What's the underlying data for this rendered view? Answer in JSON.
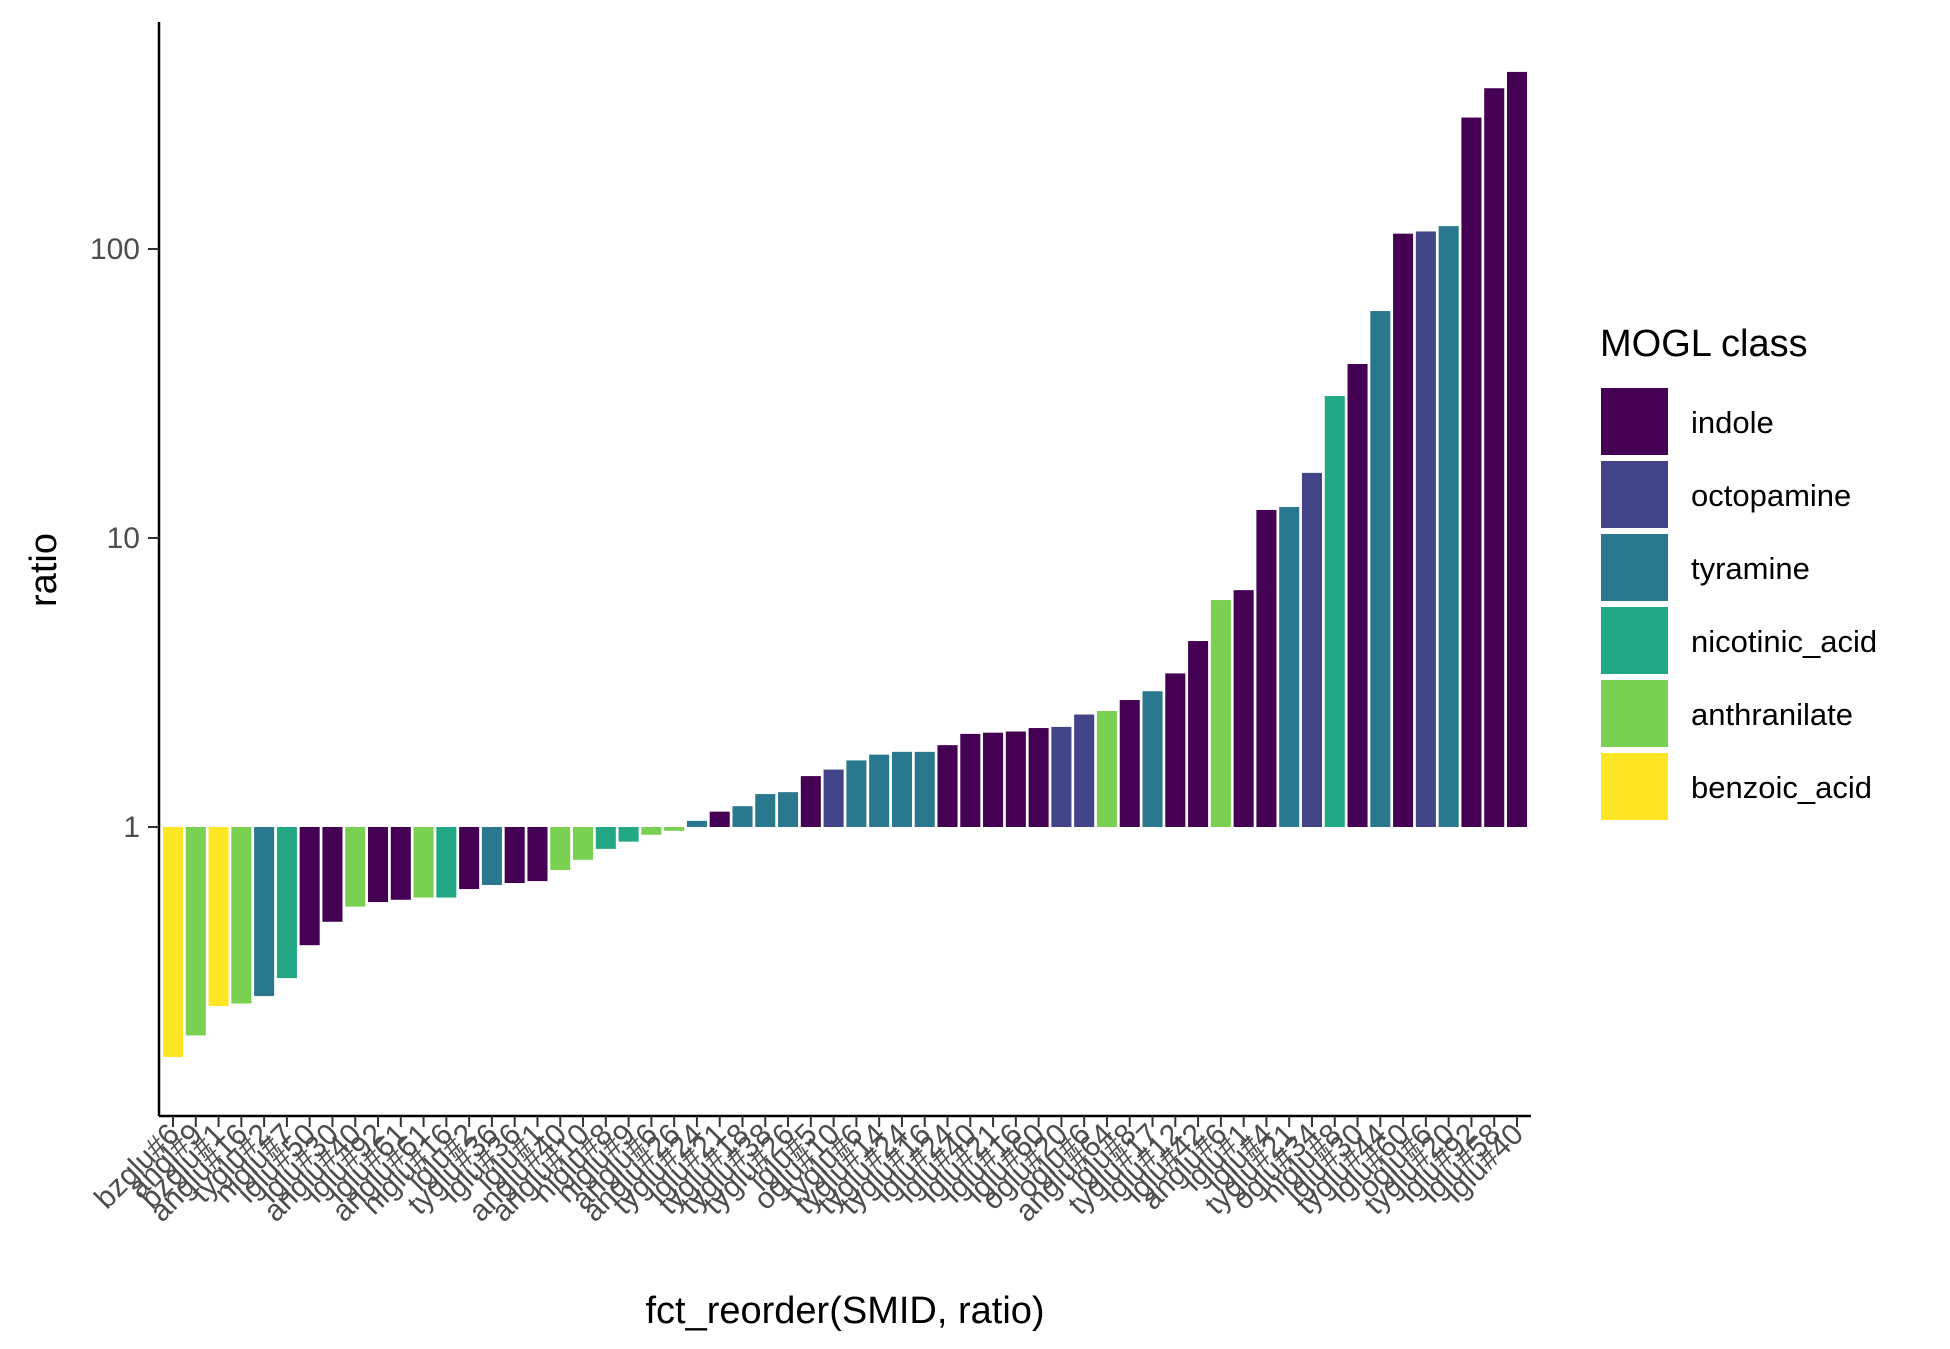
{
  "chart_data": {
    "type": "bar",
    "xlabel": "fct_reorder(SMID, ratio)",
    "ylabel": "ratio",
    "y_scale": "log10",
    "y_baseline": 1,
    "y_ticks": [
      1,
      10,
      100
    ],
    "y_tick_labels": [
      "1",
      "10",
      "100"
    ],
    "ylim": [
      0.1,
      500
    ],
    "grid": false,
    "legend": {
      "title": "MOGL class",
      "position": "right",
      "entries": [
        {
          "name": "indole",
          "color": "#440154"
        },
        {
          "name": "octopamine",
          "color": "#414487"
        },
        {
          "name": "tyramine",
          "color": "#2A788E"
        },
        {
          "name": "nicotinic_acid",
          "color": "#22A884"
        },
        {
          "name": "anthranilate",
          "color": "#7AD151"
        },
        {
          "name": "benzoic_acid",
          "color": "#FDE725"
        }
      ]
    },
    "bars": [
      {
        "label": "bzglu#6",
        "value": 0.16,
        "class": "benzoic_acid"
      },
      {
        "label": "angl#9",
        "value": 0.19,
        "class": "anthranilate"
      },
      {
        "label": "bzglu#1",
        "value": 0.24,
        "class": "benzoic_acid"
      },
      {
        "label": "anglu#16",
        "value": 0.245,
        "class": "anthranilate"
      },
      {
        "label": "tyglu#2",
        "value": 0.26,
        "class": "tyramine"
      },
      {
        "label": "niglu#7",
        "value": 0.3,
        "class": "nicotinic_acid"
      },
      {
        "label": "iglu#50",
        "value": 0.39,
        "class": "indole"
      },
      {
        "label": "iglu#30",
        "value": 0.47,
        "class": "indole"
      },
      {
        "label": "anglu#40",
        "value": 0.53,
        "class": "anthranilate"
      },
      {
        "label": "iglu#92",
        "value": 0.55,
        "class": "indole"
      },
      {
        "label": "iglu#61",
        "value": 0.56,
        "class": "indole"
      },
      {
        "label": "anglu#61",
        "value": 0.57,
        "class": "anthranilate"
      },
      {
        "label": "niglu#16",
        "value": 0.57,
        "class": "nicotinic_acid"
      },
      {
        "label": "iglu#2",
        "value": 0.61,
        "class": "indole"
      },
      {
        "label": "tyglu#36",
        "value": 0.63,
        "class": "tyramine"
      },
      {
        "label": "iglu#36",
        "value": 0.64,
        "class": "indole"
      },
      {
        "label": "iglu#1",
        "value": 0.65,
        "class": "indole"
      },
      {
        "label": "anglu#40",
        "value": 0.71,
        "class": "anthranilate"
      },
      {
        "label": "anglu#10",
        "value": 0.77,
        "class": "anthranilate"
      },
      {
        "label": "niglu#8",
        "value": 0.84,
        "class": "nicotinic_acid"
      },
      {
        "label": "niglu#9",
        "value": 0.89,
        "class": "nicotinic_acid"
      },
      {
        "label": "anglu#6",
        "value": 0.94,
        "class": "anthranilate"
      },
      {
        "label": "anglu#26",
        "value": 0.97,
        "class": "anthranilate"
      },
      {
        "label": "tyglu#24",
        "value": 1.05,
        "class": "tyramine"
      },
      {
        "label": "iglu#21",
        "value": 1.13,
        "class": "indole"
      },
      {
        "label": "tyglu#18",
        "value": 1.18,
        "class": "tyramine"
      },
      {
        "label": "tyglu#38",
        "value": 1.3,
        "class": "tyramine"
      },
      {
        "label": "tyglu#26",
        "value": 1.32,
        "class": "tyramine"
      },
      {
        "label": "iglu#5",
        "value": 1.5,
        "class": "indole"
      },
      {
        "label": "oglu#10",
        "value": 1.58,
        "class": "octopamine"
      },
      {
        "label": "tyglu#6",
        "value": 1.7,
        "class": "tyramine"
      },
      {
        "label": "tyglu#14",
        "value": 1.78,
        "class": "tyramine"
      },
      {
        "label": "tyglu#24",
        "value": 1.82,
        "class": "tyramine"
      },
      {
        "label": "tyglu#16",
        "value": 1.82,
        "class": "tyramine"
      },
      {
        "label": "iglu#24",
        "value": 1.92,
        "class": "indole"
      },
      {
        "label": "iglu#40",
        "value": 2.1,
        "class": "indole"
      },
      {
        "label": "iglu#21",
        "value": 2.12,
        "class": "indole"
      },
      {
        "label": "iglu#16",
        "value": 2.14,
        "class": "indole"
      },
      {
        "label": "iglu#60",
        "value": 2.2,
        "class": "indole"
      },
      {
        "label": "oglu#20",
        "value": 2.22,
        "class": "octopamine"
      },
      {
        "label": "oglu#6",
        "value": 2.45,
        "class": "octopamine"
      },
      {
        "label": "anglu#64",
        "value": 2.52,
        "class": "anthranilate"
      },
      {
        "label": "iglu#8",
        "value": 2.75,
        "class": "indole"
      },
      {
        "label": "tyglu#17",
        "value": 2.95,
        "class": "tyramine"
      },
      {
        "label": "iglu#12",
        "value": 3.4,
        "class": "indole"
      },
      {
        "label": "iglu#42",
        "value": 4.4,
        "class": "indole"
      },
      {
        "label": "anglu#6",
        "value": 6.1,
        "class": "anthranilate"
      },
      {
        "label": "iglu#1",
        "value": 6.6,
        "class": "indole"
      },
      {
        "label": "iglu#4",
        "value": 12.5,
        "class": "indole"
      },
      {
        "label": "tyglu#21",
        "value": 12.8,
        "class": "tyramine"
      },
      {
        "label": "oglu#34",
        "value": 16.8,
        "class": "octopamine"
      },
      {
        "label": "niglu#8",
        "value": 31,
        "class": "nicotinic_acid"
      },
      {
        "label": "iglu#30",
        "value": 40,
        "class": "indole"
      },
      {
        "label": "tyglu#44",
        "value": 61,
        "class": "tyramine"
      },
      {
        "label": "iglu#60",
        "value": 113,
        "class": "indole"
      },
      {
        "label": "oglu#6",
        "value": 115,
        "class": "octopamine"
      },
      {
        "label": "tyglu#20",
        "value": 120,
        "class": "tyramine"
      },
      {
        "label": "iglu#92",
        "value": 285,
        "class": "indole"
      },
      {
        "label": "iglu#58",
        "value": 360,
        "class": "indole"
      },
      {
        "label": "iglu#40",
        "value": 410,
        "class": "indole"
      }
    ]
  }
}
